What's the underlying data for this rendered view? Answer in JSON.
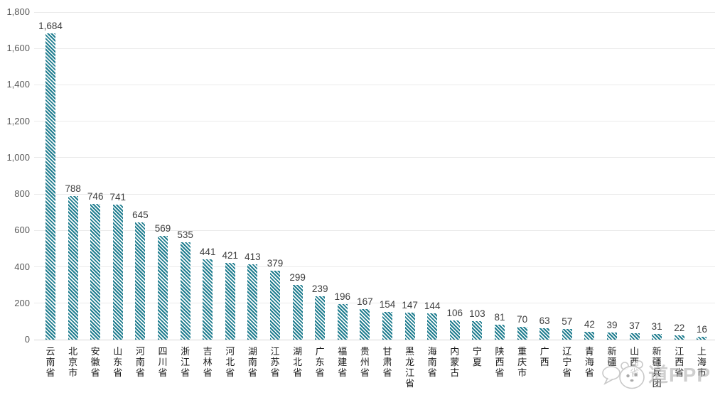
{
  "chart_data": {
    "type": "bar",
    "title": "",
    "xlabel": "",
    "ylabel": "",
    "categories": [
      "云南省",
      "北京市",
      "安徽省",
      "山东省",
      "河南省",
      "四川省",
      "浙江省",
      "吉林省",
      "河北省",
      "湖南省",
      "江苏省",
      "湖北省",
      "广东省",
      "福建省",
      "贵州省",
      "甘肃省",
      "黑龙江省",
      "海南省",
      "内蒙古",
      "宁夏",
      "陕西省",
      "重庆市",
      "广西",
      "辽宁省",
      "青海省",
      "新疆",
      "山西省",
      "新疆兵团",
      "江西省",
      "上海市"
    ],
    "values": [
      1684,
      788,
      746,
      741,
      645,
      569,
      535,
      441,
      421,
      413,
      379,
      299,
      239,
      196,
      167,
      154,
      147,
      144,
      106,
      103,
      81,
      70,
      63,
      57,
      42,
      39,
      37,
      31,
      22,
      16
    ],
    "value_labels": [
      "1,684",
      "788",
      "746",
      "741",
      "645",
      "569",
      "535",
      "441",
      "421",
      "413",
      "379",
      "299",
      "239",
      "196",
      "167",
      "154",
      "147",
      "144",
      "106",
      "103",
      "81",
      "70",
      "63",
      "57",
      "42",
      "39",
      "37",
      "31",
      "22",
      "16"
    ],
    "yticks": [
      0,
      200,
      400,
      600,
      800,
      1000,
      1200,
      1400,
      1600,
      1800
    ],
    "ytick_labels": [
      "0",
      "200",
      "400",
      "600",
      "800",
      "1,000",
      "1,200",
      "1,400",
      "1,600",
      "1,800"
    ],
    "ylim": [
      0,
      1800
    ],
    "grid": true,
    "legend": "none",
    "bar_color": "#1F7D8F",
    "bar_pattern": "diagonal-stripes"
  },
  "watermark": {
    "text": "道PPP",
    "logo_icon": "panda-chat-logo-icon"
  }
}
